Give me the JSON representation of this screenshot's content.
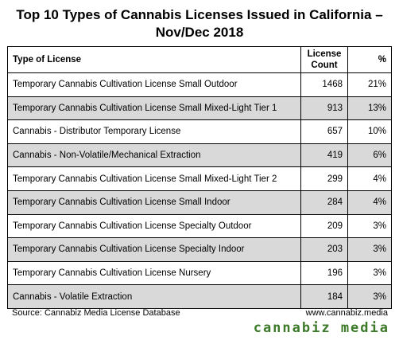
{
  "title_line1": "Top 10 Types of Cannabis Licenses Issued in California –",
  "title_line2": "Nov/Dec 2018",
  "headers": {
    "type": "Type of License",
    "count_line1": "License",
    "count_line2": "Count",
    "pct": "%"
  },
  "chart_data": {
    "type": "table",
    "columns": [
      "Type of License",
      "License Count",
      "%"
    ],
    "rows": [
      {
        "type": "Temporary Cannabis Cultivation License Small Outdoor",
        "count": "1468",
        "pct": "21%"
      },
      {
        "type": "Temporary Cannabis Cultivation License Small Mixed-Light Tier 1",
        "count": "913",
        "pct": "13%"
      },
      {
        "type": "Cannabis - Distributor Temporary License",
        "count": "657",
        "pct": "10%"
      },
      {
        "type": "Cannabis - Non-Volatile/Mechanical Extraction",
        "count": "419",
        "pct": "6%"
      },
      {
        "type": "Temporary Cannabis Cultivation License Small Mixed-Light Tier 2",
        "count": "299",
        "pct": "4%"
      },
      {
        "type": "Temporary Cannabis Cultivation License Small Indoor",
        "count": "284",
        "pct": "4%"
      },
      {
        "type": "Temporary Cannabis Cultivation License Specialty Outdoor",
        "count": "209",
        "pct": "3%"
      },
      {
        "type": "Temporary Cannabis Cultivation License Specialty Indoor",
        "count": "203",
        "pct": "3%"
      },
      {
        "type": "Temporary Cannabis Cultivation License Nursery",
        "count": "196",
        "pct": "3%"
      },
      {
        "type": "Cannabis - Volatile Extraction",
        "count": "184",
        "pct": "3%"
      }
    ],
    "shaded_row_color": "#d9d9d9"
  },
  "source": "Source: Cannabiz Media License Database",
  "url": "www.cannabiz.media",
  "logo_text": "cannabiz media",
  "logo_color": "#3c7a2a"
}
